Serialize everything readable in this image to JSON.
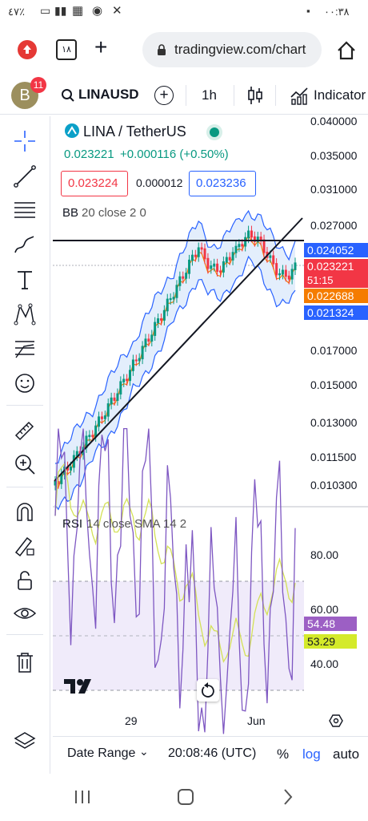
{
  "status": {
    "time": "۰۰:۳۸",
    "battery": "٤٧٪"
  },
  "browser": {
    "url": "tradingview.com/chart",
    "tabs_count": "۱۸"
  },
  "toolbar": {
    "avatar_letter": "B",
    "notification_count": "11",
    "symbol": "LINAUSD",
    "interval": "1h",
    "indicators_label": "Indicator"
  },
  "legend": {
    "title": "LINA / TetherUS",
    "price": "0.023221",
    "change": "+0.000116 (+0.50%)",
    "bid": "0.023224",
    "spread": "0.000012",
    "ask": "0.023236",
    "bb_label": "BB",
    "bb_params": "20 close 2 0",
    "rsi_label": "RSI",
    "rsi_params": "14 close SMA 14 2"
  },
  "price_axis": {
    "labels": [
      "0.040000",
      "0.035000",
      "0.031000",
      "0.027000",
      "0.017000",
      "0.015000",
      "0.013000",
      "0.011500",
      "0.010300"
    ],
    "tag_upper": "0.024052",
    "tag_price": "0.023221",
    "tag_countdown": "51:15",
    "tag_basis": "0.022688",
    "tag_lower": "0.021324"
  },
  "rsi_axis": {
    "labels": [
      "80.00",
      "60.00",
      "40.00"
    ],
    "tag_rsi": "54.48",
    "tag_sma": "53.29"
  },
  "time_axis": {
    "labels": [
      "29",
      "Jun"
    ]
  },
  "bottom": {
    "date_range": "Date Range",
    "clock": "20:08:46 (UTC)",
    "percent": "%",
    "log": "log",
    "auto": "auto"
  },
  "colors": {
    "accent": "#2962ff",
    "up": "#089981",
    "down": "#f23645",
    "tag_upper": "#2962ff",
    "tag_price": "#f23645",
    "tag_basis": "#f57c00",
    "rsi_line": "#7e57c2",
    "rsi_sma": "#d4e157",
    "rsi_fill": "#f0ebfa"
  }
}
